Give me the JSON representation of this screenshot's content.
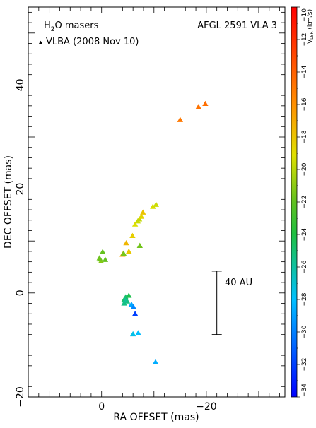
{
  "chart_data": {
    "type": "scatter",
    "title": "AFGL 2591 VLA 3",
    "subtitle": "H2O masers",
    "legend": {
      "marker": "triangle",
      "label": "VLBA (2008 Nov 10)",
      "placement": "top-left"
    },
    "xlabel": "RA OFFSET (mas)",
    "ylabel": "DEC OFFSET (mas)",
    "xlim": [
      14,
      -35
    ],
    "ylim": [
      -20,
      55
    ],
    "xticks": [
      0,
      -20
    ],
    "yticks": [
      -20,
      0,
      20,
      40
    ],
    "scale_bar": {
      "label": "40 AU",
      "x": -22,
      "y_range": [
        -8,
        4.2
      ]
    },
    "colorbar": {
      "label": "V_LSR (km/s)",
      "range": [
        -34,
        -10
      ],
      "ticks": [
        -34,
        -32,
        -30,
        -28,
        -26,
        -24,
        -22,
        -20,
        -18,
        -16,
        -14,
        -12,
        -10
      ]
    },
    "series": [
      {
        "marker": "triangle",
        "x": [
          -15.0,
          -18.5,
          -19.8,
          -4.0,
          -4.7,
          -5.2,
          -5.9,
          -6.4,
          -6.9,
          -7.2,
          -7.6,
          -7.9,
          -7.3,
          -9.8,
          -10.4,
          -4.2,
          0.3,
          -0.2,
          0.1,
          0.4,
          -0.7,
          -4.3,
          -4.6,
          -4.9,
          -5.2,
          -4.3,
          -4.5,
          -5.7,
          -6.1,
          -6.4,
          -6.0,
          -7.0,
          -10.3
        ],
        "y": [
          33.3,
          35.8,
          36.4,
          7.4,
          9.6,
          8.0,
          11.0,
          13.2,
          13.8,
          14.2,
          14.7,
          15.5,
          9.1,
          16.6,
          17.0,
          7.6,
          6.5,
          7.9,
          6.1,
          6.7,
          6.4,
          -1.3,
          -0.8,
          -1.6,
          -0.5,
          -2.0,
          -1.4,
          -2.2,
          -2.7,
          -4.0,
          -7.9,
          -7.7,
          -13.3
        ],
        "v": [
          -15.0,
          -14.8,
          -14.6,
          -16.8,
          -17.5,
          -18.2,
          -18.4,
          -19.2,
          -19.6,
          -19.8,
          -18.7,
          -18.0,
          -21.6,
          -19.3,
          -19.6,
          -21.5,
          -21.5,
          -21.9,
          -21.2,
          -21.7,
          -21.9,
          -24.6,
          -24.9,
          -25.3,
          -24.2,
          -25.4,
          -25.7,
          -28.8,
          -29.8,
          -32.0,
          -27.5,
          -28.1,
          -28.6
        ]
      }
    ]
  }
}
